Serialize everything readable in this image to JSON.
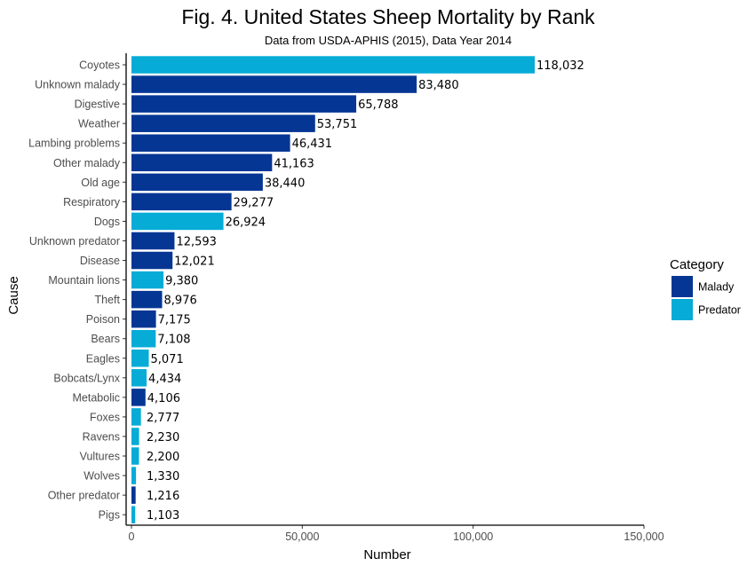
{
  "chart_data": {
    "type": "bar",
    "orientation": "horizontal",
    "title": "Fig. 4. United States Sheep Mortality by Rank",
    "subtitle": "Data from USDA-APHIS (2015), Data Year 2014",
    "xlabel": "Number",
    "ylabel": "Cause",
    "xlim": [
      0,
      150000
    ],
    "xticks": [
      0,
      50000,
      100000,
      150000
    ],
    "xtick_labels": [
      "0",
      "50,000",
      "100,000",
      "150,000"
    ],
    "grid": false,
    "legend": {
      "title": "Category",
      "position": "right",
      "entries": [
        {
          "name": "Malady",
          "color": "#053694"
        },
        {
          "name": "Predator",
          "color": "#06ACD6"
        }
      ]
    },
    "categories": [
      "Coyotes",
      "Unknown malady",
      "Digestive",
      "Weather",
      "Lambing problems",
      "Other malady",
      "Old age",
      "Respiratory",
      "Dogs",
      "Unknown predator",
      "Disease",
      "Mountain lions",
      "Theft",
      "Poison",
      "Bears",
      "Eagles",
      "Bobcats/Lynx",
      "Metabolic",
      "Foxes",
      "Ravens",
      "Vultures",
      "Wolves",
      "Other predator",
      "Pigs"
    ],
    "values": [
      118032,
      83480,
      65788,
      53751,
      46431,
      41163,
      38440,
      29277,
      26924,
      12593,
      12021,
      9380,
      8976,
      7175,
      7108,
      5071,
      4434,
      4106,
      2777,
      2230,
      2200,
      1330,
      1216,
      1103
    ],
    "value_labels": [
      "118,032",
      "83,480",
      "65,788",
      "53,751",
      "46,431",
      "41,163",
      "38,440",
      "29,277",
      "26,924",
      "12,593",
      "12,021",
      "9,380",
      "8,976",
      "7,175",
      "7,108",
      "5,071",
      "4,434",
      "4,106",
      "2,777",
      "2,230",
      "2,200",
      "1,330",
      "1,216",
      "1,103"
    ],
    "bar_category": [
      "Predator",
      "Malady",
      "Malady",
      "Malady",
      "Malady",
      "Malady",
      "Malady",
      "Malady",
      "Predator",
      "Malady",
      "Malady",
      "Predator",
      "Malady",
      "Malady",
      "Predator",
      "Predator",
      "Predator",
      "Malady",
      "Predator",
      "Predator",
      "Predator",
      "Predator",
      "Malady",
      "Predator"
    ]
  }
}
